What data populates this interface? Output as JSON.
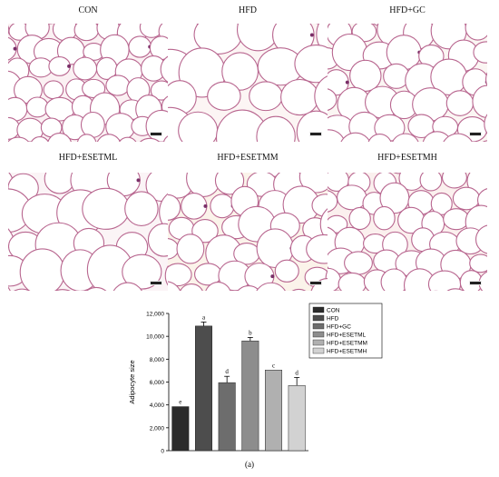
{
  "figure": {
    "panels": [
      {
        "label": "CON",
        "bg": "#fbf1f3"
      },
      {
        "label": "HFD",
        "bg": "#fcf5f4"
      },
      {
        "label": "HFD+GC",
        "bg": "#fbf6f3"
      },
      {
        "label": "HFD+ESETML",
        "bg": "#fbf4f6"
      },
      {
        "label": "HFD+ESETMM",
        "bg": "#fbf3ea"
      },
      {
        "label": "HFD+ESETMH",
        "bg": "#fbf0ee"
      }
    ],
    "sublabel": "(a)"
  },
  "chart_data": {
    "type": "bar",
    "ylabel": "Adipocyte size",
    "ylim": [
      0,
      12000
    ],
    "yticks": [
      0,
      2000,
      4000,
      6000,
      8000,
      10000,
      12000
    ],
    "ytick_labels": [
      "0",
      "2,000",
      "4,000",
      "6,000",
      "8,000",
      "10,000",
      "12,000"
    ],
    "categories": [
      "CON",
      "HFD",
      "HFD+GC",
      "HFD+ESETML",
      "HFD+ESETMM",
      "HFD+ESETMH"
    ],
    "values": [
      3850,
      10900,
      5950,
      9600,
      7050,
      5700
    ],
    "errors": [
      0,
      350,
      550,
      300,
      0,
      700
    ],
    "letters": [
      "e",
      "a",
      "d",
      "b",
      "c",
      "d"
    ],
    "colors": [
      "#2b2b2b",
      "#4d4d4d",
      "#6d6d6d",
      "#8d8d8d",
      "#b0b0b0",
      "#d2d2d2"
    ],
    "legend": [
      "CON",
      "HFD",
      "HFD+GC",
      "HFD+ESETML",
      "HFD+ESETMM",
      "HFD+ESETMH"
    ],
    "legend_position": "top-right"
  }
}
